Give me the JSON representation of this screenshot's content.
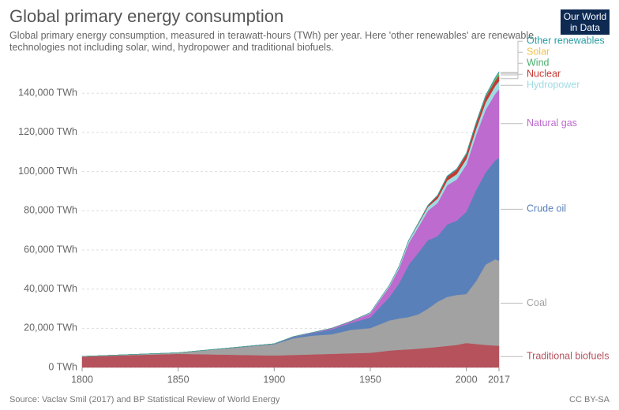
{
  "chart_data": {
    "type": "stacked_area",
    "title": "Global primary energy consumption",
    "subtitle": "Global primary energy consumption, measured in terawatt-hours (TWh) per year. Here 'other renewables' are renewable technologies not including solar, wind, hydropower and traditional biofuels.",
    "logo": "Our World in Data",
    "source": "Source: Vaclav Smil (2017) and BP Statistical Review of World Energy",
    "license": "CC BY-SA",
    "x": [
      1800,
      1850,
      1900,
      1910,
      1920,
      1930,
      1940,
      1950,
      1960,
      1965,
      1970,
      1975,
      1980,
      1985,
      1990,
      1995,
      2000,
      2005,
      2010,
      2015,
      2017
    ],
    "xlim": [
      1800,
      2017
    ],
    "xticks": [
      1800,
      1850,
      1900,
      1950,
      2000,
      2017
    ],
    "ylim": [
      0,
      155000
    ],
    "yticks": [
      {
        "value": 0,
        "label": "0 TWh"
      },
      {
        "value": 20000,
        "label": "20,000 TWh"
      },
      {
        "value": 40000,
        "label": "40,000 TWh"
      },
      {
        "value": 60000,
        "label": "60,000 TWh"
      },
      {
        "value": 80000,
        "label": "80,000 TWh"
      },
      {
        "value": 100000,
        "label": "100,000 TWh"
      },
      {
        "value": 120000,
        "label": "120,000 TWh"
      },
      {
        "value": 140000,
        "label": "140,000 TWh"
      }
    ],
    "grid": true,
    "series": [
      {
        "name": "Traditional biofuels",
        "color": "#b5525c",
        "values": [
          5556,
          6944,
          6111,
          6389,
          6667,
          6944,
          7222,
          7500,
          8611,
          9000,
          9250,
          9600,
          10000,
          10500,
          11000,
          11500,
          12500,
          12000,
          11500,
          11200,
          11100
        ]
      },
      {
        "name": "Coal",
        "color": "#a2a2a2",
        "values": [
          97,
          569,
          5728,
          8500,
          9600,
          10000,
          12000,
          12600,
          15400,
          16000,
          16500,
          17500,
          20000,
          23000,
          25000,
          25500,
          25000,
          32000,
          41000,
          44000,
          43400
        ]
      },
      {
        "name": "Crude oil",
        "color": "#5a80ba",
        "values": [
          0,
          0,
          200,
          700,
          1300,
          2500,
          3500,
          5400,
          12000,
          18000,
          26700,
          31500,
          35000,
          33500,
          37000,
          38000,
          42000,
          46500,
          47000,
          50500,
          52500
        ]
      },
      {
        "name": "Natural gas",
        "color": "#bd6bce",
        "values": [
          0,
          0,
          60,
          180,
          300,
          600,
          900,
          2100,
          5300,
          7600,
          11000,
          13000,
          15000,
          17000,
          20000,
          21000,
          24000,
          28000,
          32000,
          34000,
          35000
        ]
      },
      {
        "name": "Hydropower",
        "color": "#9fdbe2",
        "values": [
          0,
          0,
          0,
          0,
          0,
          0,
          0,
          400,
          800,
          1100,
          1400,
          1700,
          2000,
          2200,
          2400,
          2700,
          2900,
          3100,
          3700,
          4000,
          4100
        ]
      },
      {
        "name": "Nuclear",
        "color": "#c43a33",
        "values": [
          0,
          0,
          0,
          0,
          0,
          0,
          0,
          0,
          0,
          30,
          80,
          380,
          700,
          1500,
          2000,
          2300,
          2500,
          2750,
          2750,
          2600,
          2700
        ]
      },
      {
        "name": "Wind",
        "color": "#4bae6c",
        "values": [
          0,
          0,
          0,
          0,
          0,
          0,
          0,
          0,
          0,
          0,
          0,
          0,
          0,
          0,
          0,
          10,
          30,
          100,
          340,
          830,
          1100
        ]
      },
      {
        "name": "Solar",
        "color": "#f0c24a",
        "values": [
          0,
          0,
          0,
          0,
          0,
          0,
          0,
          0,
          0,
          0,
          0,
          0,
          0,
          0,
          0,
          0,
          0,
          10,
          30,
          250,
          440
        ]
      },
      {
        "name": "Other renewables",
        "color": "#2a9ea6",
        "values": [
          0,
          0,
          0,
          0,
          0,
          0,
          0,
          0,
          0,
          0,
          50,
          100,
          200,
          300,
          400,
          450,
          500,
          550,
          600,
          650,
          700
        ]
      }
    ]
  }
}
